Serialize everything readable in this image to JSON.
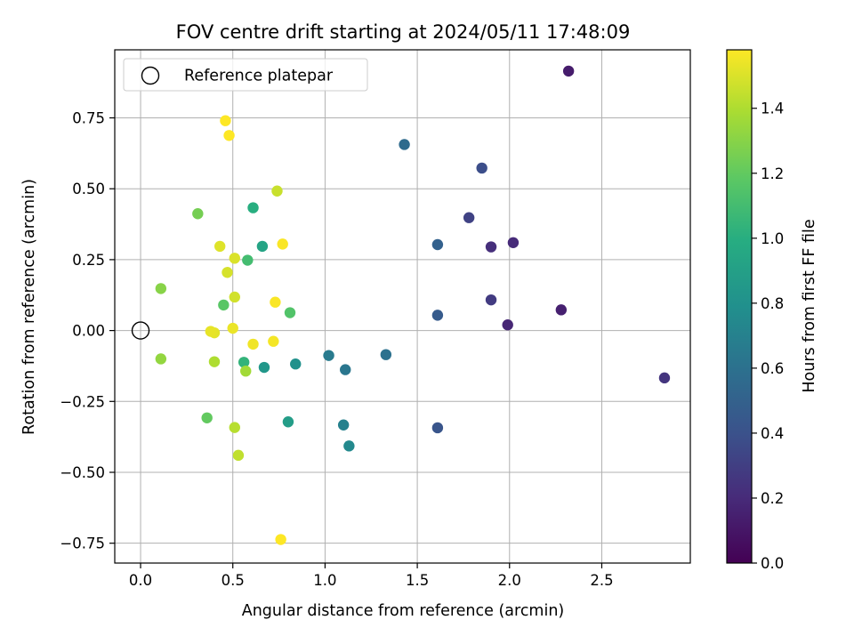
{
  "chart_data": {
    "type": "scatter",
    "title": "FOV centre drift starting at 2024/05/11 17:48:09",
    "xlabel": "Angular distance from reference (arcmin)",
    "ylabel": "Rotation from reference (arcmin)",
    "xlim": [
      -0.14,
      2.98
    ],
    "ylim": [
      -0.82,
      0.99
    ],
    "xticks": [
      0.0,
      0.5,
      1.0,
      1.5,
      2.0,
      2.5
    ],
    "xtick_labels": [
      "0.0",
      "0.5",
      "1.0",
      "1.5",
      "2.0",
      "2.5"
    ],
    "yticks": [
      -0.75,
      -0.5,
      -0.25,
      0.0,
      0.25,
      0.5,
      0.75
    ],
    "ytick_labels": [
      "−0.75",
      "−0.50",
      "−0.25",
      "0.00",
      "0.25",
      "0.50",
      "0.75"
    ],
    "grid": true,
    "legend": {
      "placement": "top-left",
      "entries": [
        {
          "label": "Reference platepar",
          "marker": "open-circle",
          "x": 0.0,
          "y": 0.0
        }
      ]
    },
    "colorbar": {
      "label": "Hours from first FF file",
      "colormap": "viridis",
      "range": [
        0.0,
        1.58
      ],
      "ticks": [
        0.0,
        0.2,
        0.4,
        0.6,
        0.8,
        1.0,
        1.2,
        1.4
      ],
      "tick_labels": [
        "0.0",
        "0.2",
        "0.4",
        "0.6",
        "0.8",
        "1.0",
        "1.2",
        "1.4"
      ]
    },
    "points": [
      {
        "x": 2.32,
        "y": 0.915,
        "c": 0.13
      },
      {
        "x": 2.28,
        "y": 0.073,
        "c": 0.15
      },
      {
        "x": 1.99,
        "y": 0.02,
        "c": 0.18
      },
      {
        "x": 2.02,
        "y": 0.31,
        "c": 0.2
      },
      {
        "x": 1.9,
        "y": 0.295,
        "c": 0.22
      },
      {
        "x": 2.84,
        "y": -0.167,
        "c": 0.25
      },
      {
        "x": 1.9,
        "y": 0.108,
        "c": 0.28
      },
      {
        "x": 1.78,
        "y": 0.398,
        "c": 0.32
      },
      {
        "x": 1.85,
        "y": 0.573,
        "c": 0.38
      },
      {
        "x": 1.61,
        "y": -0.343,
        "c": 0.42
      },
      {
        "x": 1.61,
        "y": 0.054,
        "c": 0.46
      },
      {
        "x": 1.61,
        "y": 0.303,
        "c": 0.5
      },
      {
        "x": 1.43,
        "y": 0.656,
        "c": 0.56
      },
      {
        "x": 1.33,
        "y": -0.085,
        "c": 0.6
      },
      {
        "x": 1.11,
        "y": -0.138,
        "c": 0.63
      },
      {
        "x": 1.02,
        "y": -0.088,
        "c": 0.66
      },
      {
        "x": 1.1,
        "y": -0.333,
        "c": 0.7
      },
      {
        "x": 1.13,
        "y": -0.407,
        "c": 0.75
      },
      {
        "x": 0.84,
        "y": -0.118,
        "c": 0.8
      },
      {
        "x": 0.67,
        "y": -0.13,
        "c": 0.84
      },
      {
        "x": 0.8,
        "y": -0.322,
        "c": 0.88
      },
      {
        "x": 0.66,
        "y": 0.297,
        "c": 0.93
      },
      {
        "x": 0.61,
        "y": 0.433,
        "c": 1.0
      },
      {
        "x": 0.56,
        "y": -0.112,
        "c": 1.04
      },
      {
        "x": 0.58,
        "y": 0.248,
        "c": 1.1
      },
      {
        "x": 0.81,
        "y": 0.063,
        "c": 1.15
      },
      {
        "x": 0.45,
        "y": 0.09,
        "c": 1.17
      },
      {
        "x": 0.36,
        "y": -0.308,
        "c": 1.2
      },
      {
        "x": 0.31,
        "y": 0.412,
        "c": 1.25
      },
      {
        "x": 0.11,
        "y": 0.148,
        "c": 1.3
      },
      {
        "x": 0.11,
        "y": -0.1,
        "c": 1.33
      },
      {
        "x": 0.57,
        "y": -0.143,
        "c": 1.37
      },
      {
        "x": 0.4,
        "y": -0.11,
        "c": 1.4
      },
      {
        "x": 0.51,
        "y": -0.342,
        "c": 1.42
      },
      {
        "x": 0.53,
        "y": -0.44,
        "c": 1.44
      },
      {
        "x": 0.74,
        "y": 0.492,
        "c": 1.46
      },
      {
        "x": 0.51,
        "y": 0.118,
        "c": 1.48
      },
      {
        "x": 0.47,
        "y": 0.205,
        "c": 1.49
      },
      {
        "x": 0.51,
        "y": 0.255,
        "c": 1.5
      },
      {
        "x": 0.43,
        "y": 0.297,
        "c": 1.51
      },
      {
        "x": 0.4,
        "y": -0.008,
        "c": 1.52
      },
      {
        "x": 0.38,
        "y": -0.003,
        "c": 1.53
      },
      {
        "x": 0.5,
        "y": 0.008,
        "c": 1.54
      },
      {
        "x": 0.61,
        "y": -0.048,
        "c": 1.55
      },
      {
        "x": 0.72,
        "y": -0.038,
        "c": 1.56
      },
      {
        "x": 0.73,
        "y": 0.1,
        "c": 1.57
      },
      {
        "x": 0.77,
        "y": 0.305,
        "c": 1.57
      },
      {
        "x": 0.46,
        "y": 0.74,
        "c": 1.58
      },
      {
        "x": 0.48,
        "y": 0.688,
        "c": 1.58
      },
      {
        "x": 0.76,
        "y": -0.737,
        "c": 1.58
      }
    ]
  }
}
